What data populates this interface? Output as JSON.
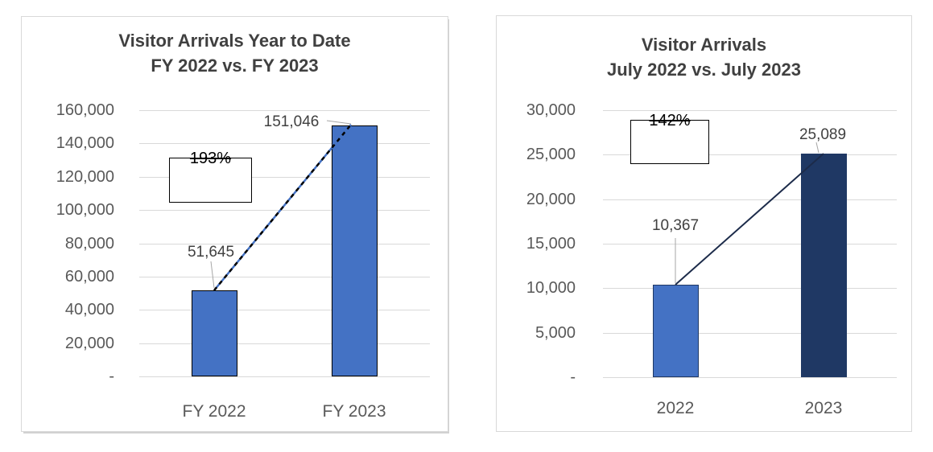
{
  "chart_data": [
    {
      "type": "bar",
      "title": "Visitor Arrivals Year to Date",
      "subtitle": "FY 2022 vs. FY 2023",
      "categories": [
        "FY 2022",
        "FY 2023"
      ],
      "values": [
        51645,
        151046
      ],
      "value_labels": [
        "51,645",
        "151,046"
      ],
      "growth_callout": "193%",
      "xlabel": "",
      "ylabel": "",
      "ylim": [
        0,
        160000
      ],
      "ytick_interval": 20000,
      "yticks_top_to_bottom": [
        "160,000",
        "140,000",
        "120,000",
        "100,000",
        "80,000",
        "60,000",
        "40,000",
        "20,000",
        "-"
      ],
      "grid": true,
      "legend": "none",
      "bar_fill_colors": [
        "#4472C4",
        "#4472C4"
      ],
      "bar_border_colors": [
        "#000000",
        "#000000"
      ],
      "connector_line": {
        "style": "dashed",
        "color_primary": "#4472C4",
        "color_dash": "#000000"
      }
    },
    {
      "type": "bar",
      "title": "Visitor Arrivals",
      "subtitle": "July 2022 vs. July 2023",
      "categories": [
        "2022",
        "2023"
      ],
      "values": [
        10367,
        25089
      ],
      "value_labels": [
        "10,367",
        "25,089"
      ],
      "growth_callout": "142%",
      "xlabel": "",
      "ylabel": "",
      "ylim": [
        0,
        30000
      ],
      "ytick_interval": 5000,
      "yticks_top_to_bottom": [
        "30,000",
        "25,000",
        "20,000",
        "15,000",
        "10,000",
        "5,000",
        "-"
      ],
      "grid": true,
      "legend": "none",
      "bar_fill_colors": [
        "#4472C4",
        "#1F3864"
      ],
      "bar_border_colors": [
        "#1F3864",
        "none"
      ],
      "connector_line": {
        "style": "solid",
        "color_primary": "#1C2B4A"
      }
    }
  ],
  "theme": {
    "background": "#FFFFFF",
    "title_color": "#404040",
    "axis_text_color": "#595959",
    "data_label_color": "#404040",
    "gridline_color": "#D9D9D9",
    "panel_border_color": "#D9D9D9",
    "leader_line_color": "#A6A6A6",
    "accent_blue": "#4472C4",
    "accent_navy": "#1F3864"
  }
}
